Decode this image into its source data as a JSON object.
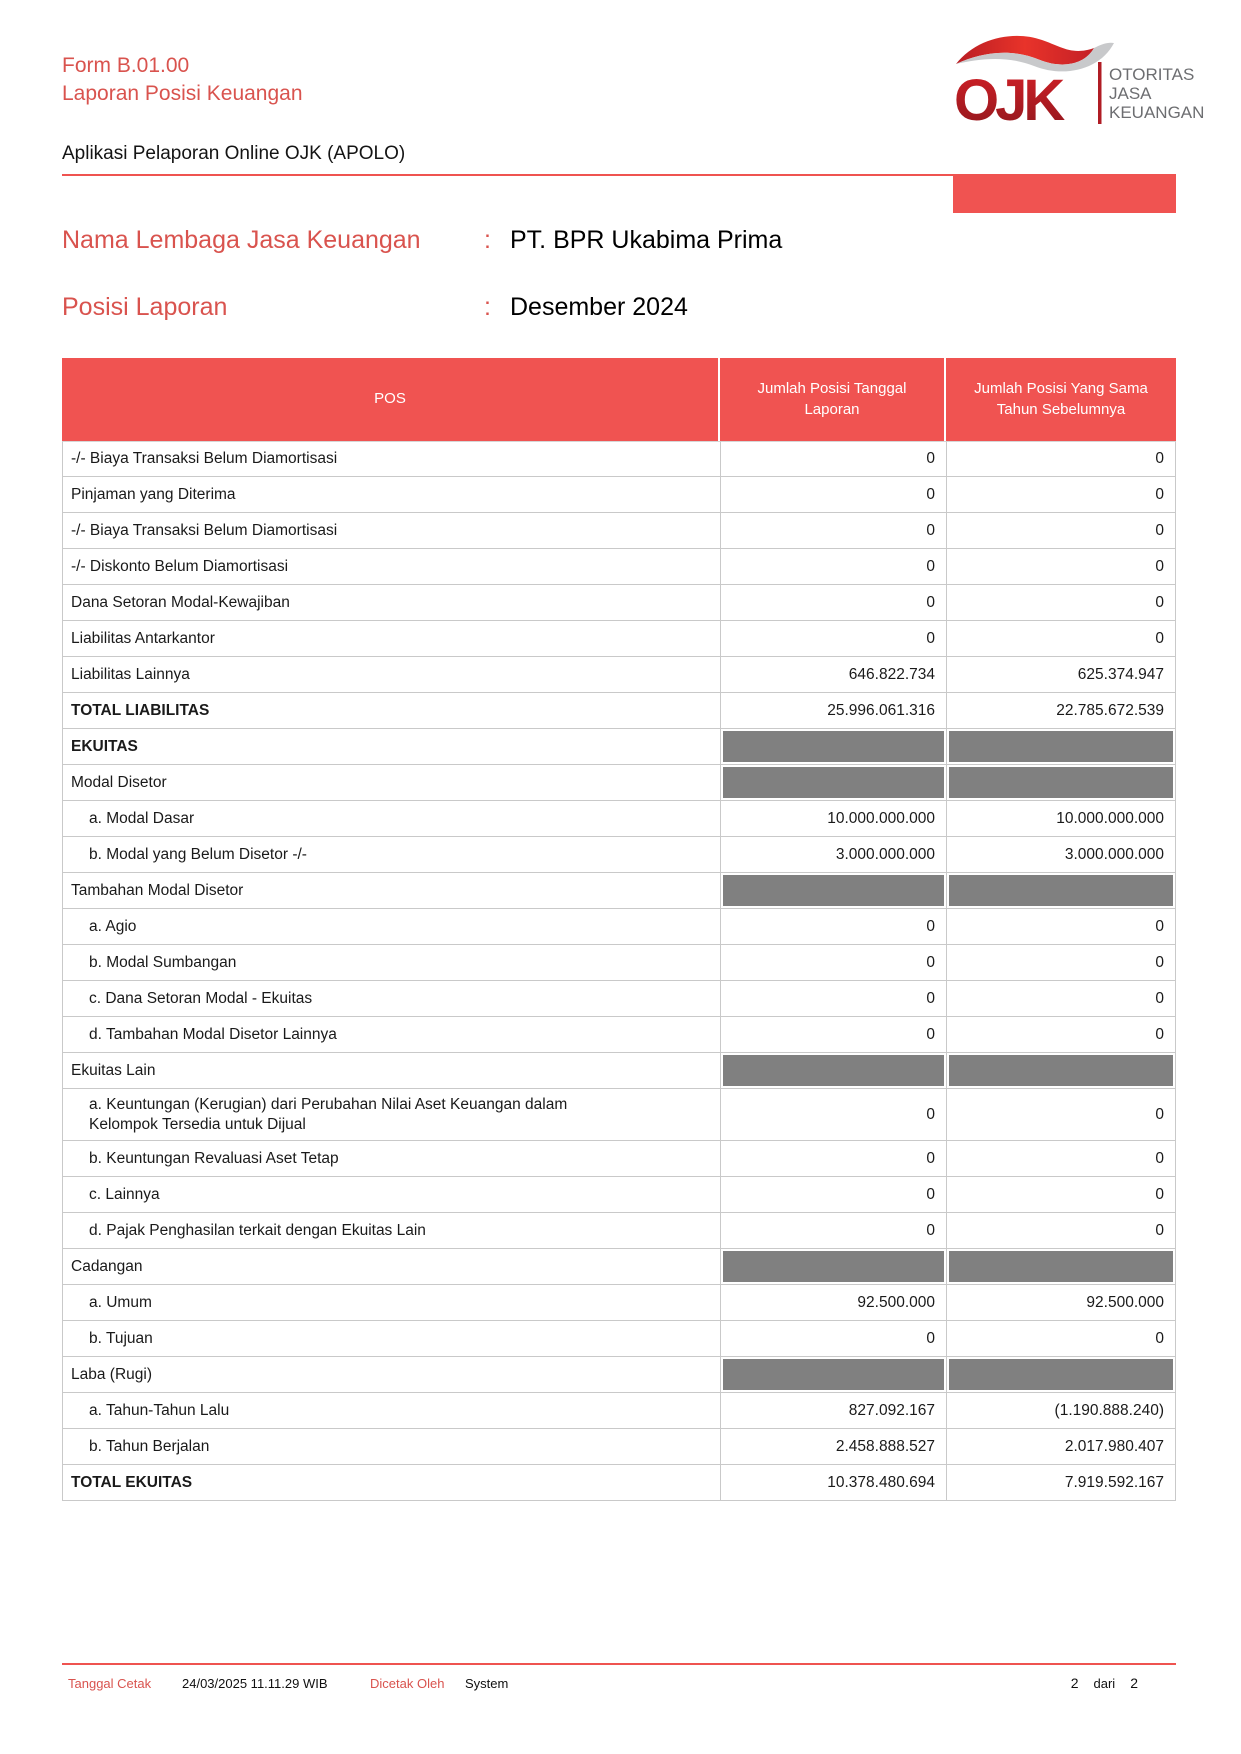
{
  "document": {
    "form_code": "Form B.01.00",
    "form_title": "Laporan Posisi Keuangan",
    "app_name": "Aplikasi Pelaporan Online OJK (APOLO)"
  },
  "logo": {
    "monogram": "OJK",
    "org_line1": "OTORITAS",
    "org_line2": "JASA",
    "org_line3": "KEUANGAN"
  },
  "report_info": {
    "rows": [
      {
        "label": "Nama Lembaga Jasa Keuangan",
        "separator": ":",
        "value": "PT. BPR Ukabima Prima"
      },
      {
        "label": "Posisi Laporan",
        "separator": ":",
        "value": "Desember 2024"
      }
    ]
  },
  "table": {
    "headers": [
      "POS",
      "Jumlah Posisi Tanggal Laporan",
      "Jumlah Posisi Yang Sama Tahun Sebelumnya"
    ],
    "rows": [
      {
        "label": "-/- Biaya Transaksi Belum Diamortisasi",
        "v1": "0",
        "v2": "0"
      },
      {
        "label": "Pinjaman yang Diterima",
        "v1": "0",
        "v2": "0"
      },
      {
        "label": "-/- Biaya Transaksi Belum Diamortisasi",
        "v1": "0",
        "v2": "0"
      },
      {
        "label": "-/- Diskonto Belum Diamortisasi",
        "v1": "0",
        "v2": "0"
      },
      {
        "label": "Dana Setoran Modal-Kewajiban",
        "v1": "0",
        "v2": "0"
      },
      {
        "label": "Liabilitas Antarkantor",
        "v1": "0",
        "v2": "0"
      },
      {
        "label": "Liabilitas Lainnya",
        "v1": "646.822.734",
        "v2": "625.374.947"
      },
      {
        "label": "TOTAL LIABILITAS",
        "bold": true,
        "v1": "25.996.061.316",
        "v2": "22.785.672.539"
      },
      {
        "label": "EKUITAS",
        "bold": true,
        "gray": true
      },
      {
        "label": "Modal Disetor",
        "gray": true
      },
      {
        "label": "a. Modal Dasar",
        "indent": true,
        "v1": "10.000.000.000",
        "v2": "10.000.000.000"
      },
      {
        "label": "b. Modal yang Belum Disetor -/-",
        "indent": true,
        "v1": "3.000.000.000",
        "v2": "3.000.000.000"
      },
      {
        "label": "Tambahan Modal Disetor",
        "gray": true
      },
      {
        "label": "a. Agio",
        "indent": true,
        "v1": "0",
        "v2": "0"
      },
      {
        "label": "b. Modal Sumbangan",
        "indent": true,
        "v1": "0",
        "v2": "0"
      },
      {
        "label": "c. Dana Setoran Modal - Ekuitas",
        "indent": true,
        "v1": "0",
        "v2": "0"
      },
      {
        "label": "d. Tambahan Modal Disetor Lainnya",
        "indent": true,
        "v1": "0",
        "v2": "0"
      },
      {
        "label": "Ekuitas Lain",
        "gray": true
      },
      {
        "label": "a. Keuntungan (Kerugian) dari Perubahan Nilai Aset Keuangan dalam Kelompok Tersedia untuk Dijual",
        "indent": true,
        "tall": true,
        "v1": "0",
        "v2": "0"
      },
      {
        "label": "b. Keuntungan Revaluasi Aset Tetap",
        "indent": true,
        "v1": "0",
        "v2": "0"
      },
      {
        "label": "c. Lainnya",
        "indent": true,
        "v1": "0",
        "v2": "0"
      },
      {
        "label": "d. Pajak Penghasilan terkait dengan Ekuitas Lain",
        "indent": true,
        "v1": "0",
        "v2": "0"
      },
      {
        "label": "Cadangan",
        "gray": true
      },
      {
        "label": "a. Umum",
        "indent": true,
        "v1": "92.500.000",
        "v2": "92.500.000"
      },
      {
        "label": "b. Tujuan",
        "indent": true,
        "v1": "0",
        "v2": "0"
      },
      {
        "label": "Laba (Rugi)",
        "gray": true
      },
      {
        "label": "a. Tahun-Tahun Lalu",
        "indent": true,
        "v1": "827.092.167",
        "v2": "(1.190.888.240)"
      },
      {
        "label": "b. Tahun Berjalan",
        "indent": true,
        "v1": "2.458.888.527",
        "v2": "2.017.980.407"
      },
      {
        "label": "TOTAL EKUITAS",
        "bold": true,
        "v1": "10.378.480.694",
        "v2": "7.919.592.167"
      }
    ]
  },
  "footer": {
    "print_date_label": "Tanggal Cetak",
    "print_date_value": "24/03/2025 11.11.29 WIB",
    "printed_by_label": "Dicetak Oleh",
    "printed_by_value": "System",
    "page_current": "2",
    "page_separator": "dari",
    "page_total": "2"
  },
  "colors": {
    "accent_red_fill": "#f05351",
    "accent_red_text": "#d9534e",
    "logo_dark_red": "#b01c24",
    "logo_flag_red": "#d2232a",
    "logo_flag_silver": "#c8c9cb",
    "logo_gray_text": "#6d6e71",
    "section_cell_gray": "#808080",
    "table_border_gray": "#c9c9c9"
  }
}
